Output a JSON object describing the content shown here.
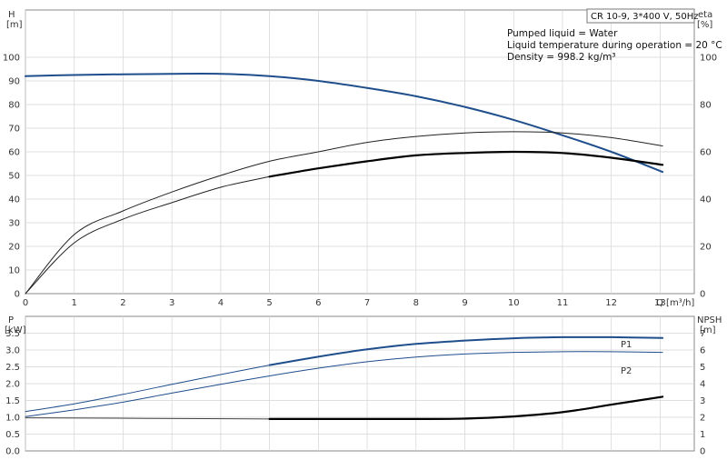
{
  "header": {
    "model": "CR 10-9, 3*400 V, 50Hz",
    "info_lines": [
      "Pumped liquid = Water",
      "Liquid temperature during operation = 20 °C",
      "Density = 998.2 kg/m³"
    ]
  },
  "chart_data": [
    {
      "type": "line",
      "xlabel": "Q [m³/h]",
      "ylabel": "H\n[m]",
      "y2label": "eta\n[%]",
      "xlim": [
        0,
        13.7
      ],
      "ylim": [
        0,
        120
      ],
      "y2lim": [
        0,
        120
      ],
      "xticks": [
        0,
        1,
        2,
        3,
        4,
        5,
        6,
        7,
        8,
        9,
        10,
        11,
        12,
        13
      ],
      "yticks": [
        0,
        10,
        20,
        30,
        40,
        50,
        60,
        70,
        80,
        90,
        100
      ],
      "y2ticks": [
        0,
        20,
        40,
        60,
        80,
        100
      ],
      "grid": true,
      "series": [
        {
          "axis": "left",
          "color": "#1f4e8c",
          "width": 2,
          "x": [
            0,
            1,
            2,
            3,
            4,
            5,
            6,
            7,
            8,
            9,
            10,
            11,
            12,
            13.05
          ],
          "y": [
            92,
            92.5,
            92.8,
            93,
            93,
            92,
            90,
            87,
            83.5,
            79,
            73.5,
            67,
            60,
            51.5
          ]
        },
        {
          "axis": "right",
          "color": "#222222",
          "width": 1,
          "x": [
            0,
            1,
            2,
            3,
            4,
            5,
            6,
            7,
            8,
            9,
            10,
            11,
            12,
            13.05
          ],
          "y": [
            0,
            25,
            35,
            43,
            50,
            56,
            60,
            64,
            66.5,
            68,
            68.5,
            68,
            66,
            62.5
          ]
        },
        {
          "axis": "right",
          "color": "#222222",
          "width": 1,
          "x": [
            0,
            1,
            2,
            3,
            4,
            5
          ],
          "y": [
            0,
            21.5,
            31.5,
            38.5,
            45,
            49.5
          ]
        },
        {
          "axis": "right",
          "color": "#000000",
          "width": 2.2,
          "x": [
            5,
            6,
            7,
            8,
            9,
            10,
            11,
            12,
            13.05
          ],
          "y": [
            49.5,
            53,
            56,
            58.5,
            59.5,
            60,
            59.5,
            57.5,
            54.5
          ]
        }
      ]
    },
    {
      "type": "line",
      "xlabel": "",
      "ylabel": "P\n[kW]",
      "y2label": "NPSH\n[m]",
      "xlim": [
        0,
        13.7
      ],
      "ylim": [
        0,
        4
      ],
      "y2lim": [
        0,
        8
      ],
      "yticks": [
        0,
        0.5,
        1,
        1.5,
        2,
        2.5,
        3,
        3.5
      ],
      "ytick_labels": [
        "0.0",
        "0.5",
        "1.0",
        "1.5",
        "2.0",
        "2.5",
        "3.0",
        "3.5"
      ],
      "y2ticks": [
        0,
        1,
        2,
        3,
        4,
        5,
        6,
        7
      ],
      "grid": true,
      "series": [
        {
          "name": "P1",
          "axis": "left",
          "color": "#1f4e8c",
          "width": 1,
          "x": [
            0,
            1,
            2,
            3,
            4,
            5
          ],
          "y": [
            1.17,
            1.4,
            1.68,
            1.98,
            2.27,
            2.55
          ]
        },
        {
          "name": "P1",
          "axis": "left",
          "color": "#1f4e8c",
          "width": 2,
          "x": [
            5,
            6,
            7,
            8,
            9,
            10,
            11,
            12,
            13.05
          ],
          "y": [
            2.55,
            2.8,
            3.02,
            3.18,
            3.28,
            3.35,
            3.38,
            3.38,
            3.36
          ]
        },
        {
          "name": "P2",
          "axis": "left",
          "color": "#1f4e8c",
          "width": 1,
          "x": [
            0,
            1,
            2,
            3,
            4,
            5,
            6,
            7,
            8,
            9,
            10,
            11,
            12,
            13.05
          ],
          "y": [
            1.02,
            1.22,
            1.45,
            1.72,
            1.98,
            2.23,
            2.46,
            2.65,
            2.79,
            2.88,
            2.93,
            2.95,
            2.95,
            2.93
          ]
        },
        {
          "axis": "right",
          "color": "#444444",
          "width": 1,
          "x": [
            0,
            5
          ],
          "y": [
            1.97,
            1.9
          ]
        },
        {
          "axis": "right",
          "color": "#000000",
          "width": 2.2,
          "x": [
            5,
            6,
            7,
            8,
            9,
            10,
            11,
            12,
            13.05
          ],
          "y": [
            1.9,
            1.9,
            1.9,
            1.9,
            1.92,
            2.05,
            2.3,
            2.75,
            3.22
          ]
        }
      ]
    }
  ]
}
